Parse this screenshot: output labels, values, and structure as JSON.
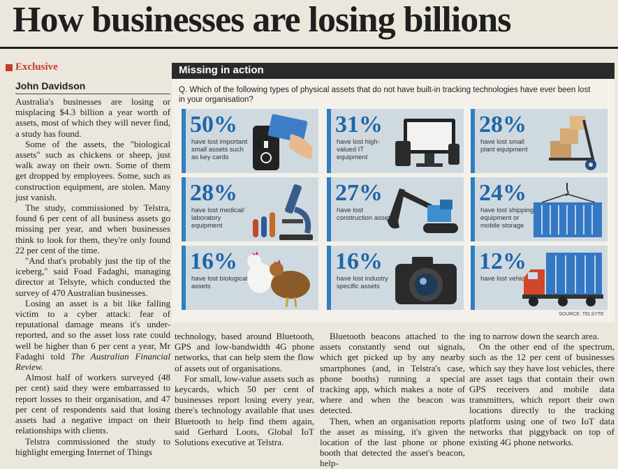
{
  "headline": "How businesses are losing billions",
  "section_tag": "Exclusive",
  "byline": "John Davidson",
  "col1": [
    "Australia's businesses are losing or misplacing $4.3 billion a year worth of assets, most of which they will never find, a study has found.",
    "Some of the assets, the \"biological assets\" such as chickens or sheep, just walk away on their own. Some of them get dropped by employees. Some, such as construction equipment, are stolen. Many just vanish.",
    "The study, commissioned by Telstra, found 6 per cent of all business assets go missing per year, and when businesses think to look for them, they're only found 22 per cent of the time.",
    "\"And that's probably just the tip of the iceberg,\" said Foad Fadaghi, managing director at Telsyte, which conducted the survey of 470 Australian businesses.",
    "Losing an asset is a bit like falling victim to a cyber attack: fear of reputational damage means it's under-reported, and so the asset loss rate could well be higher than 6 per cent a year, Mr Fadaghi told",
    "Almost half of workers surveyed (48 per cent) said they were embarrassed to report losses to their organisation, and 47 per cent of respondents said that losing assets had a negative impact on their relationships with clients.",
    "Telstra commissioned the study to highlight emerging Internet of Things"
  ],
  "col1_italic": "The Australian Financial Review.",
  "col2": [
    "technology, based around Bluetooth, GPS and low-bandwidth 4G phone networks, that can help stem the flow of assets out of organisations.",
    "For small, low-value assets such as keycards, which 50 per cent of businesses report losing every year, there's technology available that uses Bluetooth to help find them again, said Gerhard Loots, Global IoT Solutions executive at Telstra."
  ],
  "col3": [
    "Bluetooth beacons attached to the assets constantly send out signals, which get picked up by any nearby smartphones (and, in Telstra's case, phone booths) running a special tracking app, which makes a note of where and when the beacon was detected.",
    "Then, when an organisation reports the asset as missing, it's given the location of the last phone or phone booth that detected the asset's beacon, help-"
  ],
  "col4": [
    "ing to narrow down the search area.",
    "On the other end of the spectrum, such as the 12 per cent of businesses which say they have lost vehicles, there are asset tags that contain their own GPS receivers and mobile data transmitters, which report their own locations directly to the tracking platform using one of two IoT data networks that piggyback on top of existing 4G phone networks."
  ],
  "infographic": {
    "title": "Missing in action",
    "question": "Q. Which of the following types of physical assets that do not have built-in tracking technologies have ever been lost in your organisation?",
    "source": "SOURCE: TELSYTE",
    "accent": "#1f66a8",
    "tiles": [
      {
        "pct": "50%",
        "label": "have lost important small assets such as key cards",
        "icon": "keycard-icon"
      },
      {
        "pct": "31%",
        "label": "have lost high-valued IT equipment",
        "icon": "computer-icon"
      },
      {
        "pct": "28%",
        "label": "have lost small plant equipment",
        "icon": "hand-truck-icon"
      },
      {
        "pct": "28%",
        "label": "have lost medical/ laboratory equipment",
        "icon": "microscope-icon"
      },
      {
        "pct": "27%",
        "label": "have lost construction assets",
        "icon": "excavator-icon"
      },
      {
        "pct": "24%",
        "label": "have lost shipping equipment or mobile storage",
        "icon": "container-icon"
      },
      {
        "pct": "16%",
        "label": "have lost biological assets",
        "icon": "chicken-icon"
      },
      {
        "pct": "16%",
        "label": "have lost industry specific assets",
        "icon": "camera-icon"
      },
      {
        "pct": "12%",
        "label": "have lost vehicles",
        "icon": "truck-icon"
      }
    ]
  }
}
